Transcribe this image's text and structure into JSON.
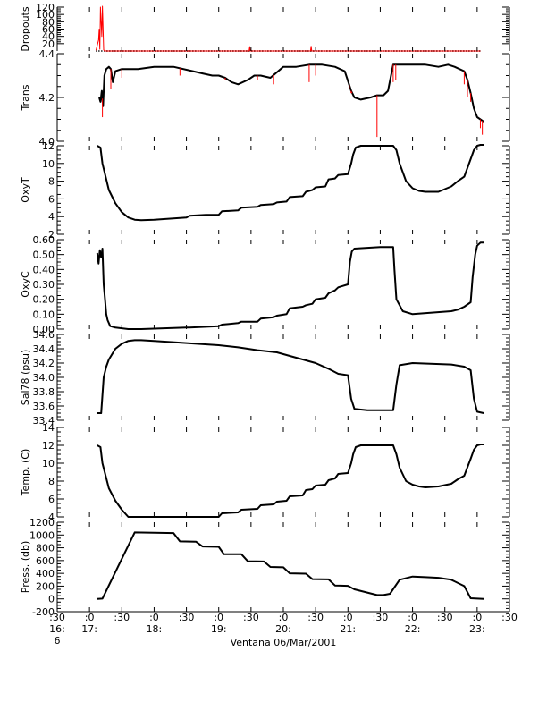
{
  "figure": {
    "xlabel": "Ventana 06/Mar/2001",
    "xticks": [
      {
        "t": 16.5,
        "l1": ":30",
        "l2": "16:",
        "l3": "6"
      },
      {
        "t": 17.0,
        "l1": ":0",
        "l2": "17:",
        "l3": ""
      },
      {
        "t": 17.5,
        "l1": ":30",
        "l2": "",
        "l3": ""
      },
      {
        "t": 18.0,
        "l1": ":0",
        "l2": "18:",
        "l3": ""
      },
      {
        "t": 18.5,
        "l1": ":30",
        "l2": "",
        "l3": ""
      },
      {
        "t": 19.0,
        "l1": ":0",
        "l2": "19:",
        "l3": ""
      },
      {
        "t": 19.5,
        "l1": ":30",
        "l2": "",
        "l3": ""
      },
      {
        "t": 20.0,
        "l1": ":0",
        "l2": "20:",
        "l3": ""
      },
      {
        "t": 20.5,
        "l1": ":30",
        "l2": "",
        "l3": ""
      },
      {
        "t": 21.0,
        "l1": ":0",
        "l2": "21:",
        "l3": ""
      },
      {
        "t": 21.5,
        "l1": ":30",
        "l2": "",
        "l3": ""
      },
      {
        "t": 22.0,
        "l1": ":0",
        "l2": "22:",
        "l3": ""
      },
      {
        "t": 22.5,
        "l1": ":30",
        "l2": "",
        "l3": ""
      },
      {
        "t": 23.0,
        "l1": ":0",
        "l2": "23:",
        "l3": ""
      },
      {
        "t": 23.5,
        "l1": ":30",
        "l2": "",
        "l3": ""
      }
    ],
    "colors": {
      "main": "#000000",
      "raw": "#ff0000"
    }
  },
  "chart_data": [
    {
      "type": "line",
      "ylabel": "Dropouts",
      "xlim": [
        16.5,
        23.5
      ],
      "ylim": [
        0,
        120
      ],
      "ytick_labels": [
        "20",
        "40",
        "60",
        "80",
        "100",
        "120"
      ],
      "series": [
        {
          "color": "#000000",
          "style": "dots",
          "x": [
            17.1,
            23.05
          ],
          "y": [
            0,
            0
          ]
        },
        {
          "color": "#ff0000",
          "x": [
            17.1,
            17.14,
            17.15,
            17.16,
            17.17,
            17.19,
            17.2,
            17.22,
            17.23,
            17.25,
            19.47,
            19.48,
            19.49,
            20.42,
            20.43,
            20.44,
            23.05
          ],
          "y": [
            2,
            30,
            60,
            5,
            120,
            40,
            130,
            3,
            1,
            0,
            0,
            12,
            0,
            0,
            13,
            0,
            0
          ]
        }
      ]
    },
    {
      "type": "line",
      "ylabel": "Trans",
      "xlim": [
        16.5,
        23.5
      ],
      "ylim": [
        4.0,
        4.4
      ],
      "ytick_labels": [
        "4.0",
        "4.2",
        "4.4"
      ],
      "series": [
        {
          "color": "#000000",
          "x": [
            17.15,
            17.17,
            17.19,
            17.21,
            17.23,
            17.26,
            17.3,
            17.33,
            17.36,
            17.4,
            17.5,
            17.6,
            17.75,
            18.0,
            18.3,
            18.6,
            18.75,
            18.9,
            19.0,
            19.1,
            19.2,
            19.3,
            19.45,
            19.55,
            19.65,
            19.8,
            20.0,
            20.2,
            20.4,
            20.6,
            20.8,
            20.95,
            21.05,
            21.1,
            21.2,
            21.35,
            21.45,
            21.55,
            21.62,
            21.7,
            21.9,
            22.2,
            22.4,
            22.55,
            22.65,
            22.8,
            22.85,
            22.9,
            22.95,
            23.0,
            23.05,
            23.1
          ],
          "y": [
            4.2,
            4.18,
            4.23,
            4.16,
            4.3,
            4.33,
            4.34,
            4.33,
            4.27,
            4.32,
            4.33,
            4.33,
            4.33,
            4.34,
            4.34,
            4.32,
            4.31,
            4.3,
            4.3,
            4.29,
            4.27,
            4.26,
            4.28,
            4.3,
            4.3,
            4.29,
            4.34,
            4.34,
            4.35,
            4.35,
            4.34,
            4.32,
            4.23,
            4.2,
            4.19,
            4.2,
            4.21,
            4.21,
            4.23,
            4.35,
            4.35,
            4.35,
            4.34,
            4.35,
            4.34,
            4.32,
            4.28,
            4.22,
            4.15,
            4.11,
            4.1,
            4.09
          ]
        },
        {
          "color": "#ff0000",
          "style": "spikes",
          "x": [
            17.2,
            17.33,
            17.5,
            18.4,
            19.1,
            19.6,
            19.85,
            20.4,
            20.5,
            21.02,
            21.06,
            21.05,
            21.05,
            21.05,
            21.45,
            21.7,
            21.74,
            22.8,
            22.85,
            22.9,
            23.05,
            23.08
          ],
          "y": [
            4.11,
            4.24,
            4.29,
            4.3,
            4.28,
            4.28,
            4.26,
            4.27,
            4.3,
            4.24,
            4.22,
            4.22,
            4.22,
            4.22,
            4.02,
            4.27,
            4.28,
            4.26,
            4.2,
            4.18,
            4.06,
            4.03
          ]
        }
      ]
    },
    {
      "type": "line",
      "ylabel": "OxyT",
      "xlim": [
        16.5,
        23.5
      ],
      "ylim": [
        2,
        12
      ],
      "ytick_labels": [
        "2",
        "4",
        "6",
        "8",
        "10",
        "12"
      ],
      "series": [
        {
          "color": "#000000",
          "x": [
            17.12,
            17.17,
            17.2,
            17.25,
            17.3,
            17.4,
            17.5,
            17.6,
            17.7,
            17.8,
            18.0,
            18.5,
            18.55,
            18.8,
            19.0,
            19.05,
            19.3,
            19.35,
            19.6,
            19.65,
            19.85,
            19.9,
            20.05,
            20.1,
            20.3,
            20.35,
            20.45,
            20.5,
            20.65,
            20.7,
            20.8,
            20.85,
            21.0,
            21.05,
            21.08,
            21.12,
            21.2,
            21.5,
            21.7,
            21.75,
            21.8,
            21.9,
            22.0,
            22.1,
            22.2,
            22.4,
            22.6,
            22.7,
            22.8,
            22.9,
            22.95,
            23.0,
            23.05,
            23.1
          ],
          "y": [
            12.0,
            11.8,
            10.0,
            8.5,
            7.0,
            5.5,
            4.5,
            3.9,
            3.65,
            3.6,
            3.65,
            3.9,
            4.1,
            4.2,
            4.2,
            4.6,
            4.7,
            5.0,
            5.1,
            5.3,
            5.4,
            5.6,
            5.7,
            6.2,
            6.3,
            6.8,
            7.0,
            7.3,
            7.4,
            8.2,
            8.3,
            8.7,
            8.8,
            10.0,
            11.0,
            11.8,
            12.0,
            12.0,
            12.0,
            11.5,
            10.0,
            8.0,
            7.2,
            6.9,
            6.8,
            6.8,
            7.4,
            8.0,
            8.5,
            10.5,
            11.5,
            12.0,
            12.1,
            12.1
          ]
        }
      ]
    },
    {
      "type": "line",
      "ylabel": "OxyC",
      "xlim": [
        16.5,
        23.5
      ],
      "ylim": [
        0,
        0.6
      ],
      "ytick_labels": [
        "0.00",
        "0.10",
        "0.20",
        "0.30",
        "0.40",
        "0.50",
        "0.60"
      ],
      "series": [
        {
          "color": "#000000",
          "x": [
            17.12,
            17.14,
            17.16,
            17.18,
            17.2,
            17.22,
            17.24,
            17.26,
            17.28,
            17.32,
            17.4,
            17.6,
            17.8,
            18.5,
            18.55,
            19.0,
            19.05,
            19.3,
            19.35,
            19.6,
            19.65,
            19.85,
            19.9,
            20.05,
            20.1,
            20.3,
            20.35,
            20.45,
            20.5,
            20.65,
            20.7,
            20.8,
            20.85,
            21.0,
            21.03,
            21.06,
            21.1,
            21.5,
            21.7,
            21.72,
            21.75,
            21.85,
            22.0,
            22.6,
            22.7,
            22.8,
            22.9,
            22.93,
            22.97,
            23.0,
            23.05,
            23.1
          ],
          "y": [
            0.51,
            0.44,
            0.53,
            0.48,
            0.54,
            0.3,
            0.2,
            0.1,
            0.06,
            0.02,
            0.01,
            0.0,
            0.0,
            0.01,
            0.01,
            0.02,
            0.03,
            0.04,
            0.05,
            0.05,
            0.07,
            0.08,
            0.09,
            0.1,
            0.14,
            0.15,
            0.16,
            0.17,
            0.2,
            0.21,
            0.24,
            0.26,
            0.28,
            0.3,
            0.45,
            0.52,
            0.54,
            0.55,
            0.55,
            0.4,
            0.2,
            0.12,
            0.1,
            0.12,
            0.13,
            0.15,
            0.18,
            0.35,
            0.5,
            0.56,
            0.58,
            0.58
          ]
        }
      ]
    },
    {
      "type": "line",
      "ylabel": "Sal78 (psu)",
      "xlim": [
        16.5,
        23.5
      ],
      "ylim": [
        33.4,
        34.6
      ],
      "ytick_labels": [
        "33.4",
        "33.6",
        "33.8",
        "34.0",
        "34.2",
        "34.4",
        "34.6"
      ],
      "series": [
        {
          "color": "#000000",
          "x": [
            17.12,
            17.18,
            17.22,
            17.26,
            17.3,
            17.4,
            17.5,
            17.6,
            17.7,
            17.8,
            18.0,
            18.5,
            19.0,
            19.3,
            19.6,
            19.9,
            20.1,
            20.3,
            20.5,
            20.7,
            20.85,
            21.0,
            21.05,
            21.1,
            21.3,
            21.5,
            21.7,
            21.75,
            21.8,
            22.0,
            22.6,
            22.8,
            22.9,
            22.95,
            23.0,
            23.1
          ],
          "y": [
            33.5,
            33.5,
            34.0,
            34.15,
            34.25,
            34.4,
            34.47,
            34.51,
            34.52,
            34.52,
            34.51,
            34.48,
            34.45,
            34.42,
            34.38,
            34.35,
            34.3,
            34.25,
            34.2,
            34.12,
            34.05,
            34.03,
            33.7,
            33.56,
            33.54,
            33.54,
            33.54,
            33.9,
            34.17,
            34.2,
            34.18,
            34.15,
            34.1,
            33.7,
            33.52,
            33.5
          ]
        }
      ]
    },
    {
      "type": "line",
      "ylabel": "Temp. (C)",
      "xlim": [
        16.5,
        23.5
      ],
      "ylim": [
        4,
        14
      ],
      "ytick_labels": [
        "4",
        "6",
        "8",
        "10",
        "12",
        "14"
      ],
      "series": [
        {
          "color": "#000000",
          "x": [
            17.12,
            17.17,
            17.2,
            17.25,
            17.3,
            17.4,
            17.5,
            17.6,
            17.7,
            17.8,
            18.0,
            18.5,
            18.55,
            18.8,
            19.0,
            19.05,
            19.3,
            19.35,
            19.6,
            19.65,
            19.85,
            19.9,
            20.05,
            20.1,
            20.3,
            20.35,
            20.45,
            20.5,
            20.65,
            20.7,
            20.8,
            20.85,
            21.0,
            21.05,
            21.08,
            21.12,
            21.2,
            21.5,
            21.7,
            21.75,
            21.8,
            21.9,
            22.0,
            22.1,
            22.2,
            22.4,
            22.6,
            22.7,
            22.8,
            22.9,
            22.95,
            23.0,
            23.05,
            23.1
          ],
          "y": [
            12.0,
            11.8,
            10.0,
            8.6,
            7.2,
            5.8,
            4.8,
            4.0,
            3.5,
            3.35,
            3.35,
            3.5,
            3.8,
            3.9,
            4.0,
            4.4,
            4.5,
            4.8,
            4.9,
            5.3,
            5.4,
            5.7,
            5.8,
            6.3,
            6.4,
            7.0,
            7.1,
            7.5,
            7.6,
            8.1,
            8.3,
            8.8,
            8.9,
            10.0,
            11.0,
            11.8,
            12.0,
            12.0,
            12.0,
            11.0,
            9.5,
            8.0,
            7.6,
            7.4,
            7.3,
            7.4,
            7.7,
            8.2,
            8.6,
            10.5,
            11.5,
            12.0,
            12.1,
            12.1
          ]
        }
      ]
    },
    {
      "type": "line",
      "ylabel": "Press. (db)",
      "xlim": [
        16.5,
        23.5
      ],
      "ylim": [
        -200,
        1200
      ],
      "ytick_labels": [
        "-200",
        "0",
        "200",
        "400",
        "600",
        "800",
        "1000",
        "1200"
      ],
      "series": [
        {
          "color": "#000000",
          "x": [
            17.12,
            17.2,
            17.7,
            18.3,
            18.4,
            18.65,
            18.75,
            19.0,
            19.08,
            19.35,
            19.45,
            19.7,
            19.8,
            20.0,
            20.1,
            20.35,
            20.45,
            20.7,
            20.8,
            21.0,
            21.1,
            21.45,
            21.55,
            21.65,
            21.8,
            22.0,
            22.2,
            22.4,
            22.6,
            22.8,
            22.9,
            23.1
          ],
          "y": [
            0,
            5,
            1040,
            1030,
            900,
            895,
            820,
            815,
            700,
            700,
            590,
            585,
            500,
            495,
            400,
            395,
            310,
            305,
            210,
            205,
            150,
            60,
            60,
            80,
            300,
            350,
            340,
            330,
            300,
            200,
            10,
            0
          ]
        }
      ]
    }
  ]
}
